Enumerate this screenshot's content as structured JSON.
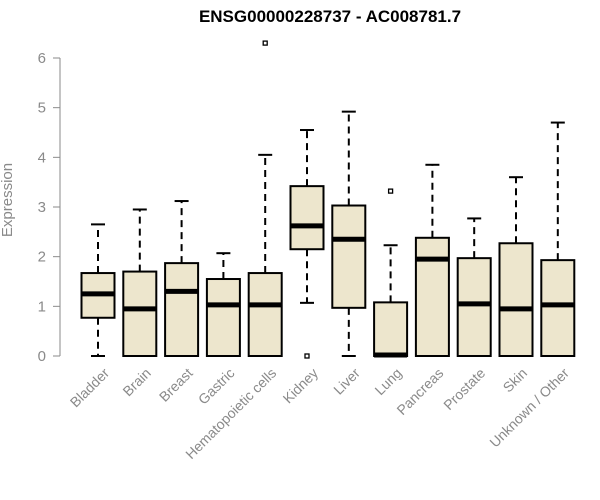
{
  "chart_data": {
    "type": "boxplot",
    "title": "ENSG00000228737 - AC008781.7",
    "xlabel": "",
    "ylabel": "Expression",
    "ylim": [
      0,
      6
    ],
    "yticks": [
      "0",
      "1",
      "2",
      "3",
      "4",
      "5",
      "6"
    ],
    "grid": false,
    "box_fill": "#ede6cd",
    "categories": [
      "Bladder",
      "Brain",
      "Breast",
      "Gastric",
      "Hematopoietic cells",
      "Kidney",
      "Liver",
      "Lung",
      "Pancreas",
      "Prostate",
      "Skin",
      "Unknown / Other"
    ],
    "boxes": [
      {
        "min": 0.0,
        "q1": 0.77,
        "median": 1.25,
        "q3": 1.67,
        "max": 2.65,
        "outliers": []
      },
      {
        "min": 0.0,
        "q1": 0.0,
        "median": 0.95,
        "q3": 1.7,
        "max": 2.95,
        "outliers": []
      },
      {
        "min": 0.0,
        "q1": 0.0,
        "median": 1.3,
        "q3": 1.87,
        "max": 3.12,
        "outliers": []
      },
      {
        "min": 0.0,
        "q1": 0.0,
        "median": 1.03,
        "q3": 1.55,
        "max": 2.07,
        "outliers": []
      },
      {
        "min": 0.0,
        "q1": 0.0,
        "median": 1.03,
        "q3": 1.67,
        "max": 4.05,
        "outliers": [
          6.3
        ]
      },
      {
        "min": 1.07,
        "q1": 2.15,
        "median": 2.62,
        "q3": 3.42,
        "max": 4.55,
        "outliers": [
          0.0
        ]
      },
      {
        "min": 0.0,
        "q1": 0.97,
        "median": 2.35,
        "q3": 3.03,
        "max": 4.92,
        "outliers": []
      },
      {
        "min": 0.0,
        "q1": 0.0,
        "median": 0.02,
        "q3": 1.08,
        "max": 2.23,
        "outliers": [
          3.32
        ]
      },
      {
        "min": 0.0,
        "q1": 0.0,
        "median": 1.95,
        "q3": 2.38,
        "max": 3.85,
        "outliers": []
      },
      {
        "min": 0.0,
        "q1": 0.0,
        "median": 1.05,
        "q3": 1.97,
        "max": 2.77,
        "outliers": []
      },
      {
        "min": 0.0,
        "q1": 0.0,
        "median": 0.95,
        "q3": 2.27,
        "max": 3.6,
        "outliers": []
      },
      {
        "min": 0.0,
        "q1": 0.0,
        "median": 1.03,
        "q3": 1.93,
        "max": 4.7,
        "outliers": []
      }
    ]
  }
}
